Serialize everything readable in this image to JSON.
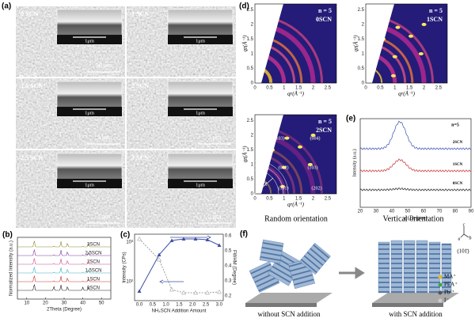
{
  "a": {
    "label": "(a)",
    "n": "n = 5",
    "tiles": [
      {
        "name": "0 SCN",
        "inset_scale": "1μm",
        "scale": "10 μm"
      },
      {
        "name": "1 SCN",
        "inset_scale": "1μm"
      },
      {
        "name": "1.5 SCN",
        "inset_scale": "1μm",
        "scale": "5 μm"
      },
      {
        "name": "2 SCN",
        "inset_scale": "1μm",
        "scale": "5 μm"
      },
      {
        "name": "2.5 SCN",
        "inset_scale": "1μm",
        "scale": "5 μm"
      },
      {
        "name": "3 SCN",
        "inset_scale": "1μm",
        "scale": "5 μm"
      }
    ]
  },
  "b": {
    "label": "(b)",
    "x_label": "2Theta (Degree)",
    "y_label": "Normalized Intensity (a.u.)",
    "x_ticks": [
      "10",
      "20",
      "30",
      "40",
      "50"
    ],
    "legend": [
      "3SCN",
      "2.5SCN",
      "2SCN",
      "1.5SCN",
      "1SCN",
      "0SCN"
    ]
  },
  "c": {
    "label": "(c)",
    "x_label": "NH₄SCN Addition Amount",
    "y_label": "Intensity (CPs)",
    "y2_label": "FWHM (Degree)",
    "x_ticks": [
      "0.0",
      "0.5",
      "1.0",
      "1.5",
      "2.0",
      "2.5",
      "3.0"
    ],
    "y_ticks": [
      "10³",
      "10²"
    ],
    "y2_ticks": [
      "0.6",
      "0.5",
      "0.4",
      "0.3",
      "0.2"
    ]
  },
  "d": {
    "label": "(d)",
    "images": [
      {
        "n": "n = 5",
        "name": "0SCN"
      },
      {
        "n": "n = 5",
        "name": "1SCN"
      },
      {
        "n": "n = 5",
        "name": "2SCN"
      }
    ],
    "q_ticks": [
      "0",
      "0.5",
      "1",
      "1.5",
      "2",
      "2.5"
    ],
    "qz_label": "qz(Å⁻¹)",
    "qr_label": "qr(Å⁻¹)",
    "peaks": [
      "(103)",
      "(004)",
      "(101)",
      "(002)",
      "(103)",
      "(101)",
      "(202)"
    ],
    "chi": "χ",
    "captions": [
      "Random orientation",
      "Vertical orientation"
    ]
  },
  "e": {
    "label": "(e)",
    "n": "n=5",
    "series": [
      "2SCN",
      "1SCN",
      "0SCN"
    ],
    "x_ticks": [
      "20",
      "30",
      "40",
      "50",
      "60",
      "70",
      "80",
      "90"
    ],
    "x_label": "χ (Degree)",
    "y_label": "Intensity (a.u.)"
  },
  "f": {
    "label": "(f)",
    "captions": [
      "without SCN addition",
      "with SCN addition"
    ],
    "legend": [
      "MA⁺",
      "PEA⁺",
      "Pb²⁺",
      "I⁻"
    ],
    "plane": "(101̄)",
    "axes": [
      "c",
      "b",
      "a"
    ]
  }
}
